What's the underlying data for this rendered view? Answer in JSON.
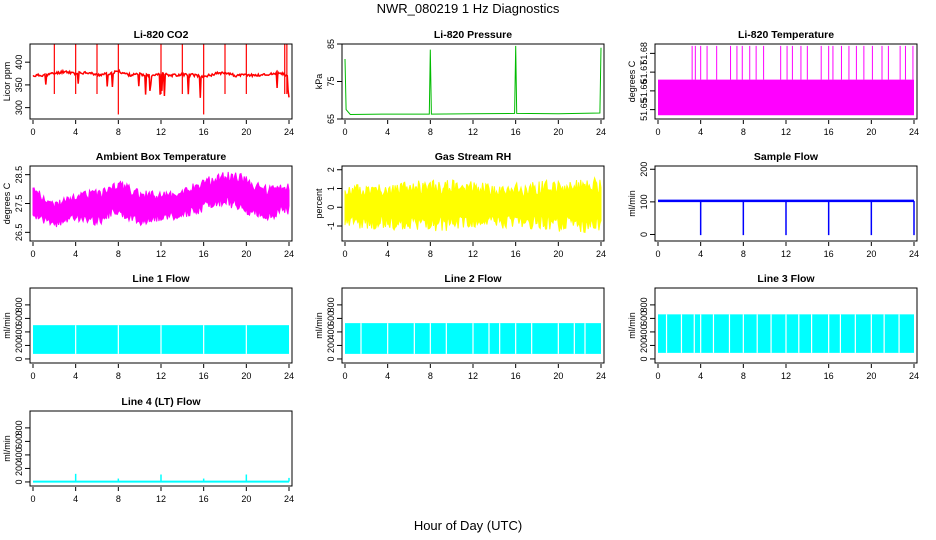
{
  "figure": {
    "title": "NWR_080219  1 Hz Diagnostics",
    "xlabel": "Hour of Day (UTC)"
  },
  "chart_data": [
    {
      "type": "line",
      "title": "Li-820 CO2",
      "ylabel": "Licor ppm",
      "color": "#ff0000",
      "xlim": [
        0,
        24
      ],
      "ylim": [
        275,
        440
      ],
      "x_ticks": [
        0,
        4,
        8,
        12,
        16,
        20,
        24
      ],
      "y_ticks": [
        300,
        350,
        400
      ],
      "series": [
        {
          "x": [
            0,
            1,
            2,
            3,
            4,
            5,
            6,
            7,
            8,
            9,
            10,
            11,
            12,
            13,
            14,
            15,
            16,
            17,
            18,
            19,
            20,
            21,
            22,
            23,
            24
          ],
          "y": [
            370,
            372,
            375,
            380,
            375,
            378,
            372,
            374,
            380,
            372,
            373,
            371,
            376,
            371,
            373,
            372,
            368,
            374,
            378,
            370,
            372,
            371,
            373,
            376,
            370
          ]
        }
      ]
    },
    {
      "type": "line",
      "title": "Li-820 Pressure",
      "ylabel": "kPa",
      "color": "#00bb00",
      "xlim": [
        0,
        24
      ],
      "ylim": [
        65,
        85
      ],
      "x_ticks": [
        0,
        4,
        8,
        12,
        16,
        20,
        24
      ],
      "y_ticks": [
        65,
        75,
        85
      ],
      "series": [
        {
          "x": [
            0,
            0.1,
            0.5,
            4,
            7.9,
            8,
            8.1,
            12,
            15.9,
            16,
            16.1,
            20,
            23.9,
            24
          ],
          "y": [
            81,
            67.5,
            66.2,
            66.3,
            66.3,
            83.5,
            66.3,
            66.4,
            66.5,
            84.5,
            66.5,
            66.4,
            66.6,
            84
          ]
        }
      ]
    },
    {
      "type": "area",
      "title": "Li-820 Temperature",
      "ylabel": "degrees C",
      "color": "#ff00ff",
      "xlim": [
        0,
        24
      ],
      "ylim": [
        51.645,
        51.685
      ],
      "x_ticks": [
        0,
        4,
        8,
        12,
        16,
        20,
        24
      ],
      "y_ticks": [
        51.65,
        51.66,
        51.67,
        51.68
      ],
      "base_range": [
        51.647,
        51.666
      ],
      "spike_value": 51.684,
      "spike_x": [
        3.2,
        3.5,
        4.0,
        4.6,
        5.5,
        6.8,
        7.4,
        7.9,
        8.6,
        9.2,
        9.9,
        11.5,
        12.1,
        12.6,
        13.4,
        14.0,
        15.3,
        16.0,
        16.4,
        17.2,
        17.9,
        18.6,
        19.3,
        20.1,
        21.0,
        21.6,
        22.7,
        23.2,
        23.9
      ]
    },
    {
      "type": "area",
      "title": "Ambient Box Temperature",
      "ylabel": "degrees C",
      "color": "#ff00ff",
      "xlim": [
        0,
        24
      ],
      "ylim": [
        26.2,
        28.8
      ],
      "x_ticks": [
        0,
        4,
        8,
        12,
        16,
        20,
        24
      ],
      "y_ticks": [
        26.5,
        27.5,
        28.5
      ],
      "series": [
        {
          "name": "max",
          "x": [
            0,
            2,
            4,
            6,
            8,
            10,
            12,
            14,
            16,
            17,
            18,
            19,
            20,
            22,
            24
          ],
          "y": [
            28.1,
            27.6,
            27.9,
            28.0,
            28.3,
            28.0,
            27.9,
            28.0,
            28.4,
            28.5,
            28.6,
            28.6,
            28.5,
            28.1,
            28.3
          ]
        },
        {
          "name": "min",
          "x": [
            0,
            2,
            4,
            6,
            8,
            10,
            12,
            14,
            16,
            17,
            18,
            19,
            20,
            22,
            24
          ],
          "y": [
            27.0,
            26.6,
            26.9,
            26.7,
            27.1,
            26.7,
            26.9,
            26.9,
            27.2,
            27.4,
            27.4,
            27.3,
            27.0,
            26.9,
            27.1
          ]
        }
      ]
    },
    {
      "type": "area",
      "title": "Gas Stream RH",
      "ylabel": "percent",
      "color": "#ffff00",
      "xlim": [
        0,
        24
      ],
      "ylim": [
        -1.8,
        2.2
      ],
      "x_ticks": [
        0,
        4,
        8,
        12,
        16,
        20,
        24
      ],
      "y_ticks": [
        -1,
        0,
        1,
        2
      ],
      "series": [
        {
          "name": "max",
          "x": [
            0,
            4,
            8,
            12,
            16,
            20,
            24
          ],
          "y": [
            1.2,
            1.3,
            1.5,
            1.4,
            1.3,
            1.5,
            1.6
          ]
        },
        {
          "name": "min",
          "x": [
            0,
            4,
            8,
            12,
            16,
            20,
            24
          ],
          "y": [
            -1.1,
            -1.2,
            -1.3,
            -1.2,
            -1.1,
            -1.3,
            -1.4
          ]
        }
      ]
    },
    {
      "type": "line",
      "title": "Sample Flow",
      "ylabel": "ml/min",
      "color": "#0000ff",
      "xlim": [
        0,
        24
      ],
      "ylim": [
        -20,
        210
      ],
      "x_ticks": [
        0,
        4,
        8,
        12,
        16,
        20,
        24
      ],
      "y_ticks": [
        0,
        100,
        200
      ],
      "base_value": 103,
      "dip_x": [
        4,
        8,
        12,
        16,
        20,
        24
      ],
      "dip_value": -2
    },
    {
      "type": "area",
      "title": "Line 1 Flow",
      "ylabel": "ml/min",
      "color": "#00ffff",
      "xlim": [
        0,
        24
      ],
      "ylim": [
        -60,
        1050
      ],
      "x_ticks": [
        0,
        4,
        8,
        12,
        16,
        20,
        24
      ],
      "y_ticks": [
        0,
        200,
        400,
        600,
        800
      ],
      "high": 500,
      "low": 75,
      "gap_x": [
        4,
        8,
        12,
        16,
        20
      ]
    },
    {
      "type": "area",
      "title": "Line 2 Flow",
      "ylabel": "ml/min",
      "color": "#00ffff",
      "xlim": [
        0,
        24
      ],
      "ylim": [
        -60,
        1050
      ],
      "x_ticks": [
        0,
        4,
        8,
        12,
        16,
        20,
        24
      ],
      "y_ticks": [
        0,
        200,
        400,
        600,
        800
      ],
      "high": 530,
      "low": 75,
      "gap_x": [
        1.5,
        4,
        6.5,
        8,
        9.5,
        12,
        13.5,
        14.5,
        16,
        17.5,
        20,
        21.5,
        22.5
      ]
    },
    {
      "type": "area",
      "title": "Line 3 Flow",
      "ylabel": "ml/min",
      "color": "#00ffff",
      "xlim": [
        0,
        24
      ],
      "ylim": [
        -60,
        1050
      ],
      "x_ticks": [
        0,
        4,
        8,
        12,
        16,
        20,
        24
      ],
      "y_ticks": [
        0,
        200,
        400,
        600,
        800
      ],
      "high": 660,
      "low": 90,
      "gap_x": [
        0.8,
        2.2,
        3.4,
        4,
        5.2,
        6.7,
        8,
        9.3,
        10.6,
        12,
        13.2,
        14.4,
        16,
        17.1,
        18.5,
        20,
        21.2,
        22.6
      ]
    },
    {
      "type": "line",
      "title": "Line 4 (LT) Flow",
      "ylabel": "ml/min",
      "color": "#00ffff",
      "xlim": [
        0,
        24
      ],
      "ylim": [
        -60,
        1050
      ],
      "x_ticks": [
        0,
        4,
        8,
        12,
        16,
        20,
        24
      ],
      "y_ticks": [
        0,
        200,
        400,
        600,
        800
      ],
      "base_value": 5,
      "spike_x": [
        4,
        8,
        12,
        16,
        20,
        24
      ],
      "spike_values": [
        120,
        50,
        110,
        50,
        110,
        60
      ]
    }
  ]
}
